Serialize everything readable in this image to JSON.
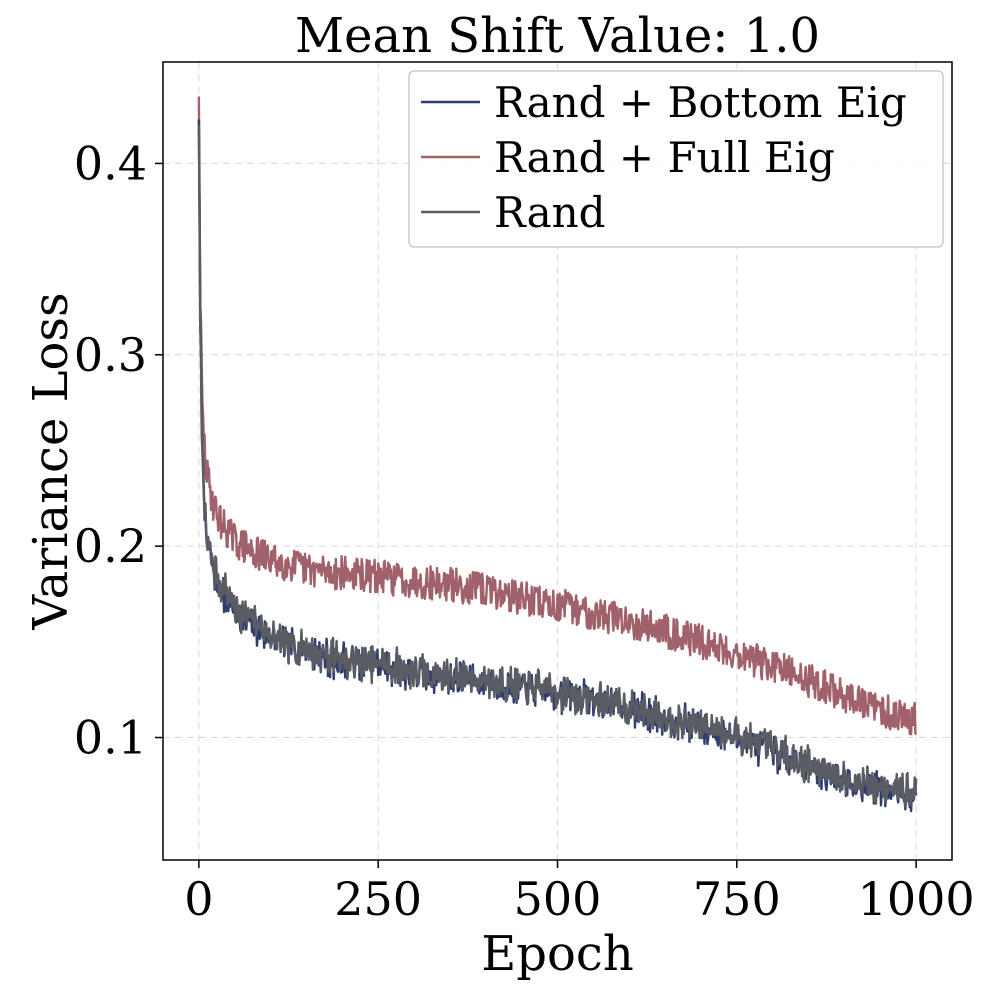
{
  "chart_data": {
    "type": "line",
    "title": "Mean Shift Value: 1.0",
    "xlabel": "Epoch",
    "ylabel": "Variance Loss",
    "xlim": [
      -50,
      1050
    ],
    "ylim": [
      0.036,
      0.453
    ],
    "xticks": [
      0,
      250,
      500,
      750,
      1000
    ],
    "xtick_labels": [
      "0",
      "250",
      "500",
      "750",
      "1000"
    ],
    "yticks": [
      0.1,
      0.2,
      0.3,
      0.4
    ],
    "ytick_labels": [
      "0.1",
      "0.2",
      "0.3",
      "0.4"
    ],
    "grid": true,
    "legend_position": "top-right",
    "series": [
      {
        "name": "Rand + Bottom Eig",
        "color": "#2f3d70",
        "x": [
          0,
          2,
          5,
          10,
          20,
          30,
          50,
          75,
          100,
          150,
          200,
          250,
          300,
          350,
          400,
          450,
          500,
          550,
          600,
          650,
          700,
          750,
          800,
          850,
          900,
          950,
          1000
        ],
        "values": [
          0.423,
          0.32,
          0.25,
          0.205,
          0.188,
          0.178,
          0.166,
          0.16,
          0.152,
          0.145,
          0.14,
          0.137,
          0.134,
          0.131,
          0.129,
          0.126,
          0.123,
          0.119,
          0.115,
          0.11,
          0.105,
          0.1,
          0.093,
          0.085,
          0.078,
          0.073,
          0.07
        ],
        "noise": 0.011
      },
      {
        "name": "Rand + Full Eig",
        "color": "#a0616b",
        "x": [
          0,
          2,
          5,
          10,
          20,
          30,
          50,
          75,
          100,
          150,
          200,
          250,
          300,
          350,
          400,
          450,
          500,
          550,
          600,
          650,
          700,
          750,
          800,
          850,
          900,
          950,
          1000
        ],
        "values": [
          0.435,
          0.33,
          0.27,
          0.24,
          0.222,
          0.213,
          0.203,
          0.197,
          0.193,
          0.188,
          0.186,
          0.184,
          0.182,
          0.18,
          0.177,
          0.173,
          0.169,
          0.165,
          0.161,
          0.156,
          0.15,
          0.144,
          0.137,
          0.13,
          0.122,
          0.114,
          0.11
        ],
        "noise": 0.009
      },
      {
        "name": "Rand",
        "color": "#5a5c63",
        "x": [
          0,
          2,
          5,
          10,
          20,
          30,
          50,
          75,
          100,
          150,
          200,
          250,
          300,
          350,
          400,
          450,
          500,
          550,
          600,
          650,
          700,
          750,
          800,
          850,
          900,
          950,
          1000
        ],
        "values": [
          0.42,
          0.315,
          0.245,
          0.205,
          0.19,
          0.18,
          0.168,
          0.161,
          0.153,
          0.146,
          0.141,
          0.138,
          0.135,
          0.132,
          0.13,
          0.127,
          0.124,
          0.12,
          0.116,
          0.111,
          0.106,
          0.101,
          0.094,
          0.086,
          0.079,
          0.074,
          0.071
        ],
        "noise": 0.011
      }
    ]
  }
}
